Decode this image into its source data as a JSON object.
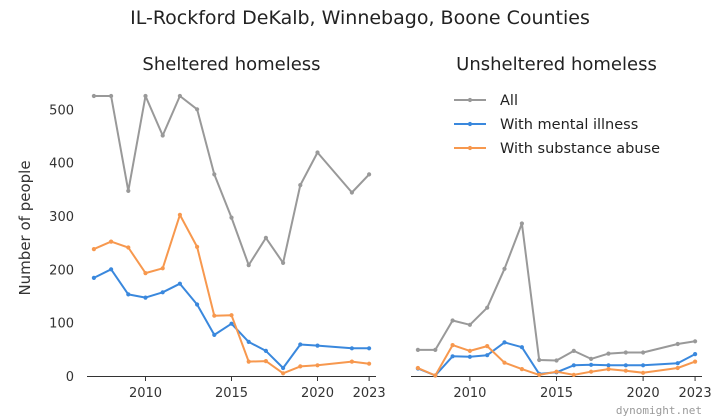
{
  "title": "IL-Rockford DeKalb, Winnebago, Boone Counties",
  "ylabel": "Number of people",
  "watermark": "dynomight.net",
  "colors": {
    "all": "#999999",
    "mental": "#3a88dd",
    "substance": "#f7984e"
  },
  "chart_data": [
    {
      "type": "line",
      "title": "Sheltered homeless",
      "xlabel": "",
      "ylabel": "Number of people",
      "x": [
        2007,
        2008,
        2009,
        2010,
        2011,
        2012,
        2013,
        2014,
        2015,
        2016,
        2017,
        2018,
        2019,
        2020,
        2022,
        2023
      ],
      "xticks": [
        2010,
        2015,
        2020,
        2023
      ],
      "yticks": [
        0,
        100,
        200,
        300,
        400,
        500
      ],
      "xlim": [
        2006.6,
        2023.4
      ],
      "ylim": [
        0,
        540
      ],
      "series": [
        {
          "name": "All",
          "color": "#999999",
          "values": [
            525,
            525,
            347,
            525,
            451,
            525,
            500,
            378,
            297,
            208,
            259,
            212,
            358,
            419,
            344,
            378
          ]
        },
        {
          "name": "With mental illness",
          "color": "#3a88dd",
          "values": [
            184,
            200,
            153,
            147,
            157,
            173,
            134,
            77,
            98,
            64,
            47,
            15,
            59,
            57,
            52,
            52
          ]
        },
        {
          "name": "With substance abuse",
          "color": "#f7984e",
          "values": [
            238,
            252,
            241,
            193,
            202,
            302,
            242,
            113,
            114,
            27,
            28,
            5,
            18,
            20,
            27,
            23
          ]
        }
      ]
    },
    {
      "type": "line",
      "title": "Unsheltered homeless",
      "xlabel": "",
      "ylabel": "",
      "x": [
        2007,
        2008,
        2009,
        2010,
        2011,
        2012,
        2013,
        2014,
        2015,
        2016,
        2017,
        2018,
        2019,
        2020,
        2022,
        2023
      ],
      "xticks": [
        2010,
        2015,
        2020,
        2023
      ],
      "xlim": [
        2006.6,
        2023.4
      ],
      "ylim": [
        0,
        540
      ],
      "legend": "top-right",
      "series": [
        {
          "name": "All",
          "color": "#999999",
          "values": [
            49,
            49,
            104,
            96,
            128,
            201,
            286,
            30,
            29,
            47,
            32,
            42,
            44,
            44,
            60,
            65
          ]
        },
        {
          "name": "With mental illness",
          "color": "#3a88dd",
          "values": [
            14,
            1,
            37,
            36,
            39,
            63,
            54,
            4,
            7,
            20,
            21,
            20,
            20,
            20,
            24,
            41
          ]
        },
        {
          "name": "With substance abuse",
          "color": "#f7984e",
          "values": [
            15,
            1,
            58,
            47,
            56,
            25,
            13,
            2,
            8,
            2,
            8,
            13,
            10,
            6,
            15,
            27
          ]
        }
      ]
    }
  ]
}
